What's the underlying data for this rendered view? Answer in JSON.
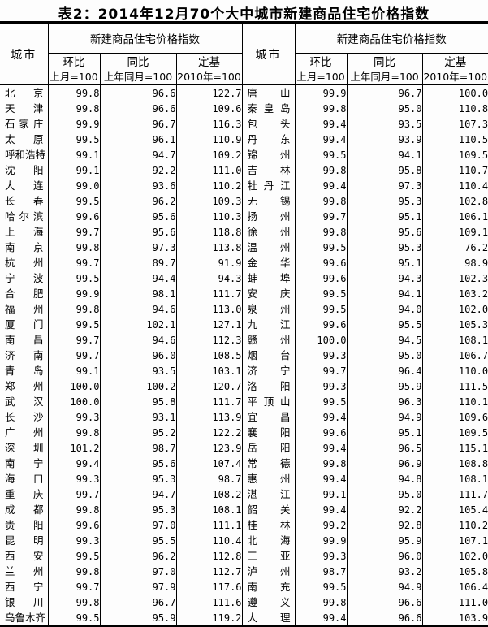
{
  "title": "表2：2014年12月70个大中城市新建商品住宅价格指数",
  "table": {
    "city_header": "城市",
    "group_header": "新建商品住宅价格指数",
    "sub_headers": [
      {
        "label": "环比",
        "base": "上月=100"
      },
      {
        "label": "同比",
        "base": "上年同月=100"
      },
      {
        "label": "定基",
        "base": "2010年=100"
      }
    ],
    "columns": [
      "city",
      "mom_prev_month_100",
      "yoy_same_month_last_year_100",
      "fixed_base_2010_100"
    ],
    "left_rows": [
      [
        "北京",
        "99.8",
        "96.6",
        "122.7"
      ],
      [
        "天津",
        "99.8",
        "96.6",
        "109.6"
      ],
      [
        "石家庄",
        "99.9",
        "96.7",
        "116.3"
      ],
      [
        "太原",
        "99.5",
        "96.1",
        "110.9"
      ],
      [
        "呼和浩特",
        "99.1",
        "94.7",
        "109.2"
      ],
      [
        "沈阳",
        "99.1",
        "92.2",
        "111.0"
      ],
      [
        "大连",
        "99.0",
        "93.6",
        "110.2"
      ],
      [
        "长春",
        "99.5",
        "96.2",
        "109.3"
      ],
      [
        "哈尔滨",
        "99.6",
        "95.6",
        "110.3"
      ],
      [
        "上海",
        "99.7",
        "95.6",
        "118.8"
      ],
      [
        "南京",
        "99.8",
        "97.3",
        "113.8"
      ],
      [
        "杭州",
        "99.7",
        "89.7",
        "91.9"
      ],
      [
        "宁波",
        "99.5",
        "94.4",
        "94.3"
      ],
      [
        "合肥",
        "99.9",
        "98.1",
        "111.7"
      ],
      [
        "福州",
        "99.8",
        "94.6",
        "113.0"
      ],
      [
        "厦门",
        "99.5",
        "102.1",
        "127.1"
      ],
      [
        "南昌",
        "99.7",
        "94.6",
        "112.3"
      ],
      [
        "济南",
        "99.7",
        "96.0",
        "108.5"
      ],
      [
        "青岛",
        "99.1",
        "93.5",
        "103.1"
      ],
      [
        "郑州",
        "100.0",
        "100.2",
        "120.7"
      ],
      [
        "武汉",
        "100.0",
        "95.8",
        "111.7"
      ],
      [
        "长沙",
        "99.3",
        "93.1",
        "113.9"
      ],
      [
        "广州",
        "99.8",
        "95.2",
        "122.2"
      ],
      [
        "深圳",
        "101.2",
        "98.7",
        "123.9"
      ],
      [
        "南宁",
        "99.4",
        "95.6",
        "107.4"
      ],
      [
        "海口",
        "99.3",
        "95.3",
        "98.7"
      ],
      [
        "重庆",
        "99.7",
        "94.7",
        "108.2"
      ],
      [
        "成都",
        "99.8",
        "95.3",
        "108.1"
      ],
      [
        "贵阳",
        "99.6",
        "97.0",
        "111.1"
      ],
      [
        "昆明",
        "99.3",
        "95.5",
        "110.4"
      ],
      [
        "西安",
        "99.5",
        "96.2",
        "112.8"
      ],
      [
        "兰州",
        "99.8",
        "97.0",
        "112.7"
      ],
      [
        "西宁",
        "99.7",
        "97.9",
        "117.6"
      ],
      [
        "银川",
        "99.8",
        "96.7",
        "111.6"
      ],
      [
        "乌鲁木齐",
        "99.5",
        "95.9",
        "119.2"
      ]
    ],
    "right_rows": [
      [
        "唐山",
        "99.9",
        "96.7",
        "100.0"
      ],
      [
        "秦皇岛",
        "99.8",
        "95.0",
        "110.8"
      ],
      [
        "包头",
        "99.4",
        "93.5",
        "107.3"
      ],
      [
        "丹东",
        "99.4",
        "93.9",
        "110.5"
      ],
      [
        "锦州",
        "99.5",
        "94.1",
        "109.5"
      ],
      [
        "吉林",
        "99.8",
        "95.8",
        "110.7"
      ],
      [
        "牡丹江",
        "99.4",
        "97.3",
        "110.4"
      ],
      [
        "无锡",
        "99.8",
        "95.3",
        "102.8"
      ],
      [
        "扬州",
        "99.7",
        "95.1",
        "106.1"
      ],
      [
        "徐州",
        "99.8",
        "95.6",
        "109.1"
      ],
      [
        "温州",
        "99.5",
        "95.3",
        "76.2"
      ],
      [
        "金华",
        "99.6",
        "95.1",
        "98.9"
      ],
      [
        "蚌埠",
        "99.6",
        "94.3",
        "102.3"
      ],
      [
        "安庆",
        "99.5",
        "94.1",
        "103.2"
      ],
      [
        "泉州",
        "99.5",
        "94.0",
        "102.0"
      ],
      [
        "九江",
        "99.6",
        "95.5",
        "105.3"
      ],
      [
        "赣州",
        "100.0",
        "94.5",
        "108.1"
      ],
      [
        "烟台",
        "99.3",
        "95.0",
        "106.7"
      ],
      [
        "济宁",
        "99.7",
        "96.4",
        "110.0"
      ],
      [
        "洛阳",
        "99.3",
        "95.9",
        "111.5"
      ],
      [
        "平顶山",
        "99.5",
        "96.3",
        "110.1"
      ],
      [
        "宜昌",
        "99.4",
        "94.9",
        "109.6"
      ],
      [
        "襄阳",
        "99.6",
        "95.1",
        "109.5"
      ],
      [
        "岳阳",
        "99.4",
        "96.5",
        "115.1"
      ],
      [
        "常德",
        "99.8",
        "96.9",
        "108.8"
      ],
      [
        "惠州",
        "99.4",
        "94.8",
        "108.1"
      ],
      [
        "湛江",
        "99.1",
        "95.0",
        "111.7"
      ],
      [
        "韶关",
        "99.4",
        "92.2",
        "105.4"
      ],
      [
        "桂林",
        "99.2",
        "92.8",
        "110.2"
      ],
      [
        "北海",
        "99.9",
        "95.9",
        "107.1"
      ],
      [
        "三亚",
        "99.3",
        "96.0",
        "102.0"
      ],
      [
        "泸州",
        "98.7",
        "93.2",
        "105.8"
      ],
      [
        "南充",
        "99.5",
        "94.9",
        "106.4"
      ],
      [
        "遵义",
        "99.8",
        "96.6",
        "111.0"
      ],
      [
        "大理",
        "99.4",
        "96.6",
        "103.9"
      ]
    ]
  },
  "colors": {
    "background": "#fdfdfd",
    "text": "#000000",
    "border": "#000000"
  }
}
